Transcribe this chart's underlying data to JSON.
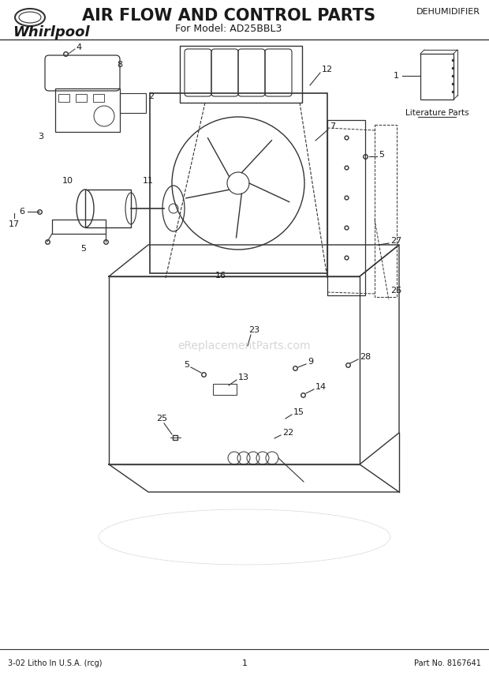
{
  "title": "AIR FLOW AND CONTROL PARTS",
  "subtitle": "For Model: AD25BBL3",
  "brand": "Whirlpool",
  "category": "DEHUMIDIFIER",
  "footer_left": "3-02 Litho In U.S.A. (rcg)",
  "footer_center": "1",
  "footer_right": "Part No. 8167641",
  "literature_label": "Literature Parts",
  "bg_color": "#ffffff",
  "text_color": "#1a1a1a",
  "line_color": "#333333",
  "watermark": "eReplacementParts.com"
}
